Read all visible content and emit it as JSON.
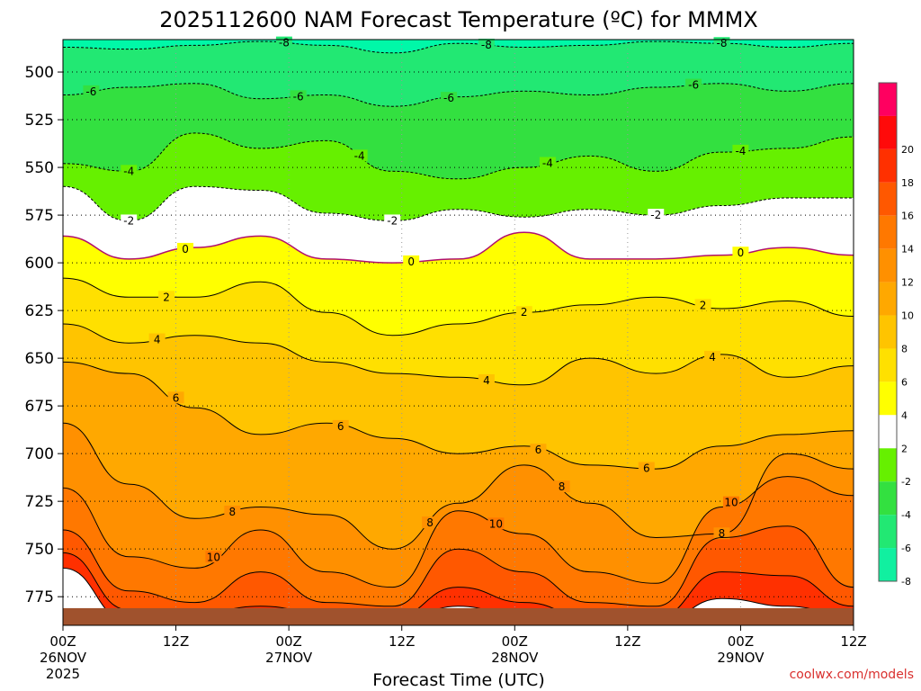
{
  "title": "2025112600 NAM Forecast Temperature (ºC) for MMMX",
  "xlabel": "Forecast Time (UTC)",
  "credit": "coolwx.com/models",
  "chart_data": {
    "type": "heatmap",
    "y_axis": {
      "label": "",
      "ticks": [
        500,
        525,
        550,
        575,
        600,
        625,
        650,
        675,
        700,
        725,
        750,
        775
      ],
      "range": [
        483,
        790
      ],
      "inverted": true
    },
    "x_axis": {
      "ticks": [
        {
          "hours": 0,
          "label": "00Z",
          "sub": "26NOV",
          "sub2": "2025"
        },
        {
          "hours": 12,
          "label": "12Z",
          "sub": "",
          "sub2": ""
        },
        {
          "hours": 24,
          "label": "00Z",
          "sub": "27NOV",
          "sub2": ""
        },
        {
          "hours": 36,
          "label": "12Z",
          "sub": "",
          "sub2": ""
        },
        {
          "hours": 48,
          "label": "00Z",
          "sub": "28NOV",
          "sub2": ""
        },
        {
          "hours": 60,
          "label": "12Z",
          "sub": "",
          "sub2": ""
        },
        {
          "hours": 72,
          "label": "00Z",
          "sub": "29NOV",
          "sub2": ""
        },
        {
          "hours": 84,
          "label": "12Z",
          "sub": "",
          "sub2": ""
        }
      ],
      "range": [
        0,
        84
      ]
    },
    "grid": true,
    "colorbar": [
      {
        "value": "-8",
        "color": "#11f0a0"
      },
      {
        "value": "-6",
        "color": "#22e873"
      },
      {
        "value": "-4",
        "color": "#33e040"
      },
      {
        "value": "-2",
        "color": "#66f000"
      },
      {
        "value": "2",
        "color": "#ffffff"
      },
      {
        "value": "4",
        "color": "#ffff00"
      },
      {
        "value": "6",
        "color": "#ffe000"
      },
      {
        "value": "8",
        "color": "#ffc400"
      },
      {
        "value": "10",
        "color": "#ffa800"
      },
      {
        "value": "12",
        "color": "#ff9000"
      },
      {
        "value": "14",
        "color": "#ff7800"
      },
      {
        "value": "16",
        "color": "#ff5800"
      },
      {
        "value": "18",
        "color": "#ff3000"
      },
      {
        "value": "20",
        "color": "#ff0a0a"
      },
      {
        "value": "",
        "color": "#ff0060"
      }
    ],
    "isotherms": [
      {
        "temp": -8,
        "levels": [
          487,
          488,
          486,
          484,
          486,
          490,
          485,
          487,
          486,
          484,
          485,
          487,
          485
        ],
        "labels": [
          {
            "hours": 23.5,
            "text": "-8"
          },
          {
            "hours": 45,
            "text": "-8"
          },
          {
            "hours": 70,
            "text": "-8"
          }
        ]
      },
      {
        "temp": -6,
        "levels": [
          512,
          508,
          506,
          514,
          512,
          518,
          513,
          510,
          512,
          508,
          506,
          510,
          506
        ],
        "labels": [
          {
            "hours": 3,
            "text": "-6"
          },
          {
            "hours": 25,
            "text": "-6"
          },
          {
            "hours": 41,
            "text": "-6"
          },
          {
            "hours": 67,
            "text": "-6"
          }
        ]
      },
      {
        "temp": -4,
        "levels": [
          548,
          552,
          532,
          540,
          536,
          552,
          556,
          550,
          544,
          552,
          542,
          540,
          534
        ],
        "labels": [
          {
            "hours": 7,
            "text": "-4"
          },
          {
            "hours": 31.5,
            "text": "-4"
          },
          {
            "hours": 51.5,
            "text": "-4"
          },
          {
            "hours": 72,
            "text": "-4"
          }
        ]
      },
      {
        "temp": -2,
        "levels": [
          560,
          578,
          560,
          562,
          574,
          578,
          572,
          576,
          572,
          575,
          570,
          566,
          566
        ],
        "labels": [
          {
            "hours": 7,
            "text": "-2"
          },
          {
            "hours": 35,
            "text": "-2"
          },
          {
            "hours": 63,
            "text": "-2"
          }
        ]
      },
      {
        "temp": 0,
        "levels": [
          586,
          598,
          592,
          586,
          598,
          600,
          598,
          584,
          598,
          598,
          596,
          592,
          596
        ],
        "labels": [
          {
            "hours": 13,
            "text": "0"
          },
          {
            "hours": 37,
            "text": "0"
          },
          {
            "hours": 72,
            "text": "0"
          }
        ]
      },
      {
        "temp": 2,
        "levels": [
          608,
          618,
          618,
          610,
          626,
          638,
          632,
          626,
          622,
          618,
          624,
          620,
          628
        ],
        "labels": [
          {
            "hours": 11,
            "text": "2"
          },
          {
            "hours": 49,
            "text": "2"
          },
          {
            "hours": 68,
            "text": "2"
          }
        ]
      },
      {
        "temp": 4,
        "levels": [
          632,
          642,
          638,
          642,
          652,
          658,
          660,
          664,
          650,
          658,
          648,
          660,
          654
        ],
        "labels": [
          {
            "hours": 10,
            "text": "4"
          },
          {
            "hours": 45,
            "text": "4"
          },
          {
            "hours": 69,
            "text": "4"
          }
        ]
      },
      {
        "temp": 6,
        "levels": [
          652,
          658,
          676,
          690,
          684,
          692,
          700,
          696,
          706,
          708,
          696,
          690,
          688
        ],
        "labels": [
          {
            "hours": 12,
            "text": "6"
          },
          {
            "hours": 29.5,
            "text": "6"
          },
          {
            "hours": 50.5,
            "text": "6"
          },
          {
            "hours": 62,
            "text": "6"
          }
        ]
      },
      {
        "temp": 8,
        "levels": [
          684,
          716,
          734,
          728,
          732,
          750,
          726,
          706,
          726,
          744,
          742,
          700,
          708
        ],
        "labels": [
          {
            "hours": 18,
            "text": "8"
          },
          {
            "hours": 39,
            "text": "8"
          },
          {
            "hours": 53,
            "text": "8"
          },
          {
            "hours": 70,
            "text": "8"
          }
        ]
      },
      {
        "temp": 10,
        "levels": [
          718,
          754,
          760,
          740,
          762,
          770,
          730,
          742,
          762,
          768,
          728,
          712,
          722
        ],
        "labels": [
          {
            "hours": 16,
            "text": "10"
          },
          {
            "hours": 46,
            "text": "10"
          },
          {
            "hours": 71,
            "text": "10"
          }
        ]
      },
      {
        "temp": 12,
        "levels": [
          740,
          772,
          778,
          762,
          778,
          780,
          750,
          762,
          778,
          780,
          744,
          738,
          770
        ],
        "labels": []
      },
      {
        "temp": 14,
        "levels": [
          752,
          782,
          784,
          780,
          784,
          786,
          770,
          778,
          786,
          786,
          762,
          764,
          780
        ],
        "labels": []
      },
      {
        "temp": 16,
        "levels": [
          760,
          788,
          789,
          788,
          789,
          789,
          780,
          786,
          789,
          789,
          776,
          780,
          786
        ],
        "labels": []
      }
    ],
    "isotherm_hours": [
      0,
      7,
      14,
      21,
      28,
      35,
      42,
      49,
      56,
      63,
      70,
      77,
      84
    ],
    "surface_level": 781
  }
}
